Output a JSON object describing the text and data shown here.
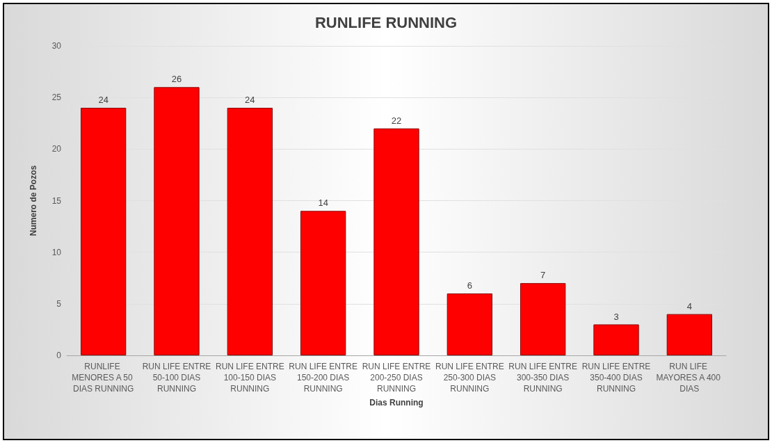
{
  "chart_data": {
    "type": "bar",
    "title": "RUNLIFE RUNNING",
    "xlabel": "Dias Running",
    "ylabel": "Numero de Pozos",
    "categories": [
      "RUNLIFE MENORES A 50 DIAS RUNNING",
      "RUN LIFE ENTRE 50-100 DIAS RUNNING",
      "RUN LIFE ENTRE 100-150 DIAS RUNNING",
      "RUN LIFE ENTRE 150-200 DIAS RUNNING",
      "RUN LIFE ENTRE 200-250 DIAS RUNNING",
      "RUN LIFE ENTRE 250-300 DIAS RUNNING",
      "RUN LIFE ENTRE 300-350 DIAS RUNNING",
      "RUN LIFE ENTRE 350-400 DIAS RUNNING",
      "RUN LIFE MAYORES A 400 DIAS"
    ],
    "values": [
      24,
      26,
      24,
      14,
      22,
      6,
      7,
      3,
      4
    ],
    "color": "#ff0000",
    "ylim": [
      0,
      30
    ],
    "yticks": [
      0,
      5,
      10,
      15,
      20,
      25,
      30
    ],
    "grid": "y",
    "data_labels": true
  }
}
